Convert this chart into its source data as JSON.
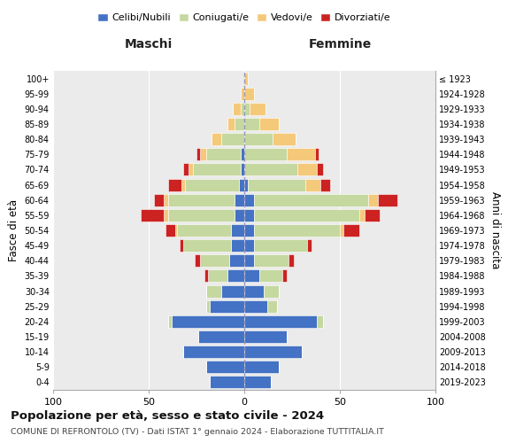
{
  "age_groups": [
    "0-4",
    "5-9",
    "10-14",
    "15-19",
    "20-24",
    "25-29",
    "30-34",
    "35-39",
    "40-44",
    "45-49",
    "50-54",
    "55-59",
    "60-64",
    "65-69",
    "70-74",
    "75-79",
    "80-84",
    "85-89",
    "90-94",
    "95-99",
    "100+"
  ],
  "birth_years": [
    "2019-2023",
    "2014-2018",
    "2009-2013",
    "2004-2008",
    "1999-2003",
    "1994-1998",
    "1989-1993",
    "1984-1988",
    "1979-1983",
    "1974-1978",
    "1969-1973",
    "1964-1968",
    "1959-1963",
    "1954-1958",
    "1949-1953",
    "1944-1948",
    "1939-1943",
    "1934-1938",
    "1929-1933",
    "1924-1928",
    "≤ 1923"
  ],
  "colors": {
    "celibi": "#4472c4",
    "coniugati": "#c5d8a0",
    "vedovi": "#f5c97a",
    "divorziati": "#cc2222"
  },
  "maschi": {
    "celibi": [
      18,
      20,
      32,
      24,
      38,
      18,
      12,
      9,
      8,
      7,
      7,
      5,
      5,
      3,
      2,
      2,
      0,
      0,
      0,
      0,
      0
    ],
    "coniugati": [
      0,
      0,
      0,
      0,
      2,
      2,
      8,
      10,
      15,
      25,
      28,
      35,
      35,
      28,
      25,
      18,
      12,
      5,
      2,
      0,
      0
    ],
    "vedovi": [
      0,
      0,
      0,
      0,
      0,
      0,
      0,
      0,
      0,
      0,
      1,
      2,
      2,
      2,
      2,
      3,
      5,
      4,
      4,
      2,
      0
    ],
    "divorziati": [
      0,
      0,
      0,
      0,
      0,
      0,
      0,
      2,
      3,
      2,
      5,
      12,
      5,
      7,
      3,
      2,
      0,
      0,
      0,
      0,
      0
    ]
  },
  "femmine": {
    "celibi": [
      14,
      18,
      30,
      22,
      38,
      12,
      10,
      8,
      5,
      5,
      5,
      5,
      5,
      2,
      0,
      0,
      0,
      0,
      0,
      0,
      0
    ],
    "coniugati": [
      0,
      0,
      0,
      0,
      3,
      5,
      8,
      12,
      18,
      28,
      45,
      55,
      60,
      30,
      28,
      22,
      15,
      8,
      3,
      0,
      0
    ],
    "vedovi": [
      0,
      0,
      0,
      0,
      0,
      0,
      0,
      0,
      0,
      0,
      2,
      3,
      5,
      8,
      10,
      15,
      12,
      10,
      8,
      5,
      2
    ],
    "divorziati": [
      0,
      0,
      0,
      0,
      0,
      0,
      0,
      2,
      3,
      2,
      8,
      8,
      10,
      5,
      3,
      2,
      0,
      0,
      0,
      0,
      0
    ]
  },
  "xlim": 100,
  "title": "Popolazione per età, sesso e stato civile - 2024",
  "subtitle": "COMUNE DI REFRONTOLO (TV) - Dati ISTAT 1° gennaio 2024 - Elaborazione TUTTITALIA.IT",
  "ylabel_left": "Fasce di età",
  "ylabel_right": "Anni di nascita",
  "xlabel_maschi": "Maschi",
  "xlabel_femmine": "Femmine",
  "legend_labels": [
    "Celibi/Nubili",
    "Coniugati/e",
    "Vedovi/e",
    "Divorziati/e"
  ],
  "bg_color": "#ebebeb"
}
